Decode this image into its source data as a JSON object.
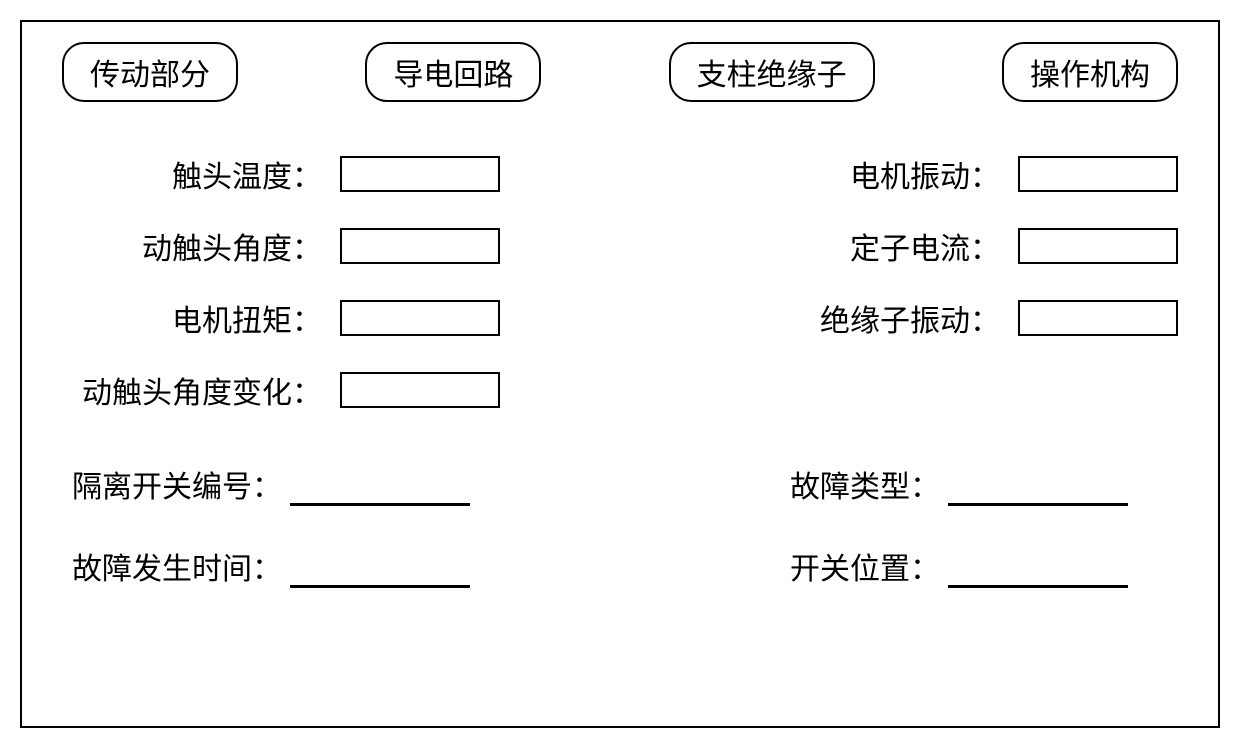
{
  "tabs": {
    "t1": "传动部分",
    "t2": "导电回路",
    "t3": "支柱绝缘子",
    "t4": "操作机构"
  },
  "leftFields": {
    "f1": {
      "label": "触头温度：",
      "value": ""
    },
    "f2": {
      "label": "动触头角度：",
      "value": ""
    },
    "f3": {
      "label": "电机扭矩：",
      "value": ""
    },
    "f4": {
      "label": "动触头角度变化：",
      "value": ""
    }
  },
  "rightFields": {
    "f1": {
      "label": "电机振动：",
      "value": ""
    },
    "f2": {
      "label": "定子电流：",
      "value": ""
    },
    "f3": {
      "label": "绝缘子振动：",
      "value": ""
    }
  },
  "bottomLeft": {
    "b1": {
      "label": "隔离开关编号：",
      "value": ""
    },
    "b2": {
      "label": "故障发生时间：",
      "value": ""
    }
  },
  "bottomRight": {
    "b1": {
      "label": "故障类型：",
      "value": ""
    },
    "b2": {
      "label": "开关位置：",
      "value": ""
    }
  },
  "colors": {
    "border": "#000000",
    "background": "#ffffff",
    "text": "#000000"
  },
  "typography": {
    "fontFamily": "SimSun",
    "labelFontSize": 30,
    "tabFontSize": 30
  },
  "layout": {
    "containerWidth": 1200,
    "containerHeight": 708,
    "tabBorderRadius": 22,
    "inputWidth": 160,
    "inputHeight": 36,
    "underlineWidth": 180
  }
}
